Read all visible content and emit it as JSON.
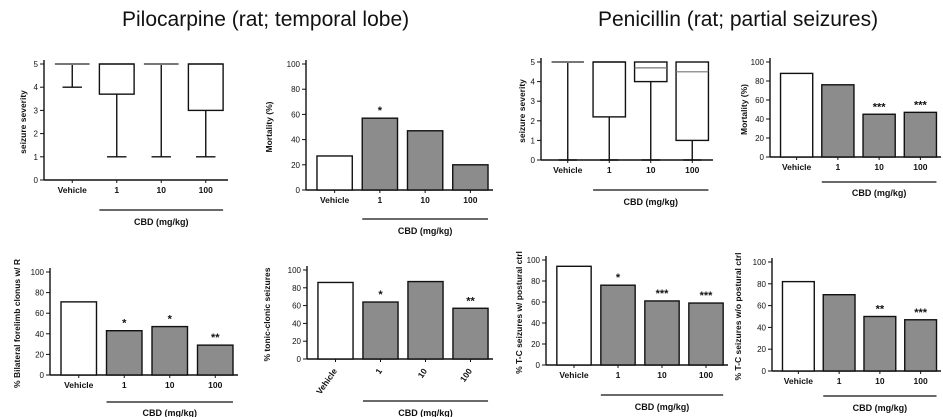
{
  "titles": {
    "left": "Pilocarpine (rat; temporal lobe)",
    "right": "Penicillin (rat; partial seizures)"
  },
  "colors": {
    "bar_vehicle": "#ffffff",
    "bar_treated": "#8c8c8c",
    "axis": "#111111"
  },
  "chart_data": [
    {
      "id": "pilo-severity",
      "type": "box",
      "ylabel": "seizure severity",
      "ylim": [
        0,
        5
      ],
      "yticks": [
        0,
        1,
        2,
        3,
        4,
        5
      ],
      "categories": [
        "Vehicle",
        "1",
        "10",
        "100"
      ],
      "group_label": "CBD (mg/kg)",
      "boxes": [
        {
          "min": 4,
          "q1": 5,
          "median": 5,
          "q3": 5,
          "max": 5
        },
        {
          "min": 1,
          "q1": 3.7,
          "median": 5,
          "q3": 5,
          "max": 5
        },
        {
          "min": 1,
          "q1": 5,
          "median": 5,
          "q3": 5,
          "max": 5
        },
        {
          "min": 1,
          "q1": 3,
          "median": 5,
          "q3": 5,
          "max": 5
        }
      ]
    },
    {
      "id": "pilo-mortality",
      "type": "bar",
      "ylabel": "Mortality (%)",
      "ylim": [
        0,
        100
      ],
      "yticks": [
        0,
        20,
        40,
        60,
        80,
        100
      ],
      "categories": [
        "Vehicle",
        "1",
        "10",
        "100"
      ],
      "group_label": "CBD (mg/kg)",
      "values": [
        27,
        57,
        47,
        20
      ],
      "annotations": [
        "",
        "*",
        "",
        ""
      ]
    },
    {
      "id": "pen-severity",
      "type": "box",
      "ylabel": "seizure severity",
      "ylim": [
        0,
        5
      ],
      "yticks": [
        0,
        1,
        2,
        3,
        4,
        5
      ],
      "categories": [
        "Vehicle",
        "1",
        "10",
        "100"
      ],
      "group_label": "CBD (mg/kg)",
      "boxes": [
        {
          "min": 0,
          "q1": 5,
          "median": 5,
          "q3": 5,
          "max": 5
        },
        {
          "min": 0,
          "q1": 2.2,
          "median": 5,
          "q3": 5,
          "max": 5
        },
        {
          "min": 0,
          "q1": 4,
          "median": 4.7,
          "q3": 5,
          "max": 5
        },
        {
          "min": 0,
          "q1": 1,
          "median": 4.5,
          "q3": 5,
          "max": 5
        }
      ]
    },
    {
      "id": "pen-mortality",
      "type": "bar",
      "ylabel": "Mortality (%)",
      "ylim": [
        0,
        100
      ],
      "yticks": [
        0,
        20,
        40,
        60,
        80,
        100
      ],
      "categories": [
        "Vehicle",
        "1",
        "10",
        "100"
      ],
      "group_label": "CBD (mg/kg)",
      "values": [
        88,
        76,
        45,
        47
      ],
      "annotations": [
        "",
        "",
        "***",
        "***"
      ]
    },
    {
      "id": "pilo-clonus",
      "type": "bar",
      "ylabel": "% Bilateral forelimb clonus w/ R",
      "ylim": [
        0,
        100
      ],
      "yticks": [
        0,
        20,
        40,
        60,
        80,
        100
      ],
      "categories": [
        "Vehicle",
        "1",
        "10",
        "100"
      ],
      "group_label": "CBD (mg/kg)",
      "values": [
        71,
        43,
        47,
        29
      ],
      "annotations": [
        "",
        "*",
        "*",
        "**"
      ]
    },
    {
      "id": "pilo-tonic",
      "type": "bar",
      "ylabel": "% tonic-clonic seizures",
      "ylim": [
        0,
        100
      ],
      "yticks": [
        0,
        20,
        40,
        60,
        80,
        100
      ],
      "categories": [
        "Vehicle",
        "1",
        "10",
        "100"
      ],
      "group_label": "CBD (mg/kg)",
      "values": [
        86,
        64,
        87,
        57
      ],
      "annotations": [
        "",
        "*",
        "",
        "**"
      ]
    },
    {
      "id": "pen-tc-postural",
      "type": "bar",
      "ylabel": "% T-C seizures w/ postural ctrl",
      "ylim": [
        0,
        100
      ],
      "yticks": [
        0,
        20,
        40,
        60,
        80,
        100
      ],
      "categories": [
        "Vehicle",
        "1",
        "10",
        "100"
      ],
      "group_label": "CBD (mg/kg)",
      "values": [
        94,
        76,
        61,
        59
      ],
      "annotations": [
        "",
        "*",
        "***",
        "***"
      ]
    },
    {
      "id": "pen-tc-no-postural",
      "type": "bar",
      "ylabel": "% T-C seizures w/o postural ctrl",
      "ylim": [
        0,
        100
      ],
      "yticks": [
        0,
        20,
        40,
        60,
        80,
        100
      ],
      "categories": [
        "Vehicle",
        "1",
        "10",
        "100"
      ],
      "group_label": "CBD (mg/kg)",
      "values": [
        82,
        70,
        50,
        47
      ],
      "annotations": [
        "",
        "",
        "**",
        "***"
      ]
    }
  ]
}
